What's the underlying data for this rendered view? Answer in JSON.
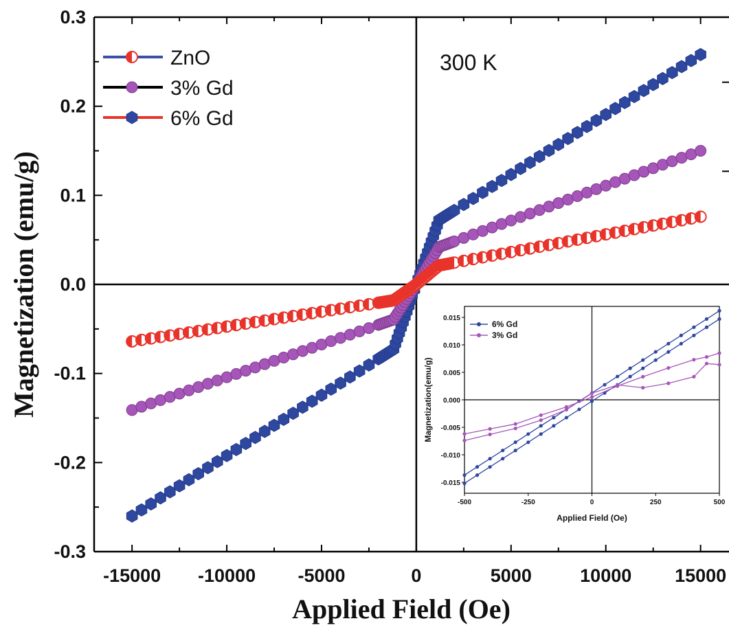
{
  "chart_data": [
    {
      "type": "scatter",
      "xlabel": "Applied Field (Oe)",
      "ylabel": "Magnetization (emu/g)",
      "xlim": [
        -17000,
        16500
      ],
      "ylim": [
        -0.3,
        0.3
      ],
      "x_ticks": [
        "-15000",
        "-10000",
        "-5000",
        "0",
        "5000",
        "10000",
        "15000"
      ],
      "y_ticks": [
        "-0.3",
        "-0.2",
        "-0.1",
        "0.0",
        "0.1",
        "0.2",
        "0.3"
      ],
      "annotation": "300 K",
      "legend_position": "top-left",
      "grid": false,
      "series": [
        {
          "name": "ZnO",
          "color": "#e8332a",
          "line_color": "#3a4fa8",
          "marker": "half-filled-circle",
          "x_range": [
            -15000,
            15000
          ],
          "y_range": [
            -0.064,
            0.076
          ],
          "y_at_zero_field": 0.0
        },
        {
          "name": "3% Gd",
          "color": "#a656b8",
          "line_color": "#000000",
          "marker": "circle",
          "x_range": [
            -15000,
            15000
          ],
          "y_range": [
            -0.141,
            0.15
          ],
          "y_at_zero_field": 0.0
        },
        {
          "name": "6% Gd",
          "color": "#2e48a0",
          "line_color": "#e8332a",
          "marker": "hexagon",
          "x_range": [
            -15000,
            15000
          ],
          "y_range": [
            -0.26,
            0.258
          ],
          "y_at_zero_field": 0.0
        }
      ]
    },
    {
      "type": "line",
      "role": "inset",
      "xlabel": "Applied Field (Oe)",
      "ylabel": "Magnetization(emu/g)",
      "xlim": [
        -500,
        500
      ],
      "ylim": [
        -0.017,
        0.017
      ],
      "x_ticks": [
        "-500",
        "-250",
        "0",
        "250",
        "500"
      ],
      "y_ticks": [
        "0.015",
        "0.010",
        "0.005",
        "0.000",
        "-0.005",
        "-0.010",
        "-0.015"
      ],
      "legend_position": "top-left",
      "series": [
        {
          "name": "6% Gd",
          "color": "#2e48a0",
          "branches": [
            {
              "x": [
                -500,
                500
              ],
              "y": [
                -0.0137,
                0.0162
              ]
            },
            {
              "x": [
                -500,
                500
              ],
              "y": [
                -0.0152,
                0.0147
              ]
            }
          ]
        },
        {
          "name": "3% Gd",
          "color": "#a656b8",
          "branches": [
            {
              "x": [
                -500,
                -400,
                -300,
                -200,
                -100,
                0,
                100,
                200,
                300,
                400,
                450,
                500
              ],
              "y": [
                -0.0062,
                -0.0053,
                -0.0044,
                -0.0028,
                -0.0013,
                0.0005,
                0.0025,
                0.0042,
                0.0058,
                0.0073,
                0.0078,
                0.0085
              ]
            },
            {
              "x": [
                -500,
                -400,
                -300,
                -200,
                -100,
                0,
                100,
                200,
                300,
                400,
                450,
                500
              ],
              "y": [
                -0.0074,
                -0.0063,
                -0.0052,
                -0.0037,
                -0.0018,
                0.0012,
                0.0027,
                0.0022,
                0.003,
                0.0042,
                0.0066,
                0.0064
              ]
            }
          ]
        }
      ]
    }
  ]
}
